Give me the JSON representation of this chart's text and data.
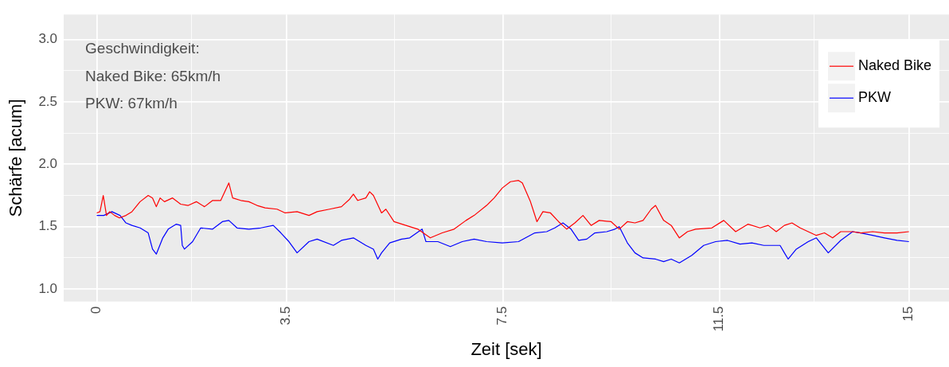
{
  "chart_data": {
    "type": "line",
    "xlabel": "Zeit [sek]",
    "ylabel": "Schärfe [acum]",
    "annotations": [
      "Geschwindigkeit:",
      "Naked Bike: 65km/h",
      "PKW: 67km/h"
    ],
    "xlim": [
      -0.61,
      15.74
    ],
    "ylim": [
      0.9,
      3.2
    ],
    "xticks": [
      0,
      {
        "value": 1.75,
        "label": null
      },
      3.5,
      {
        "value": 5.5,
        "label": null
      },
      7.5,
      {
        "value": 9.5,
        "label": null
      },
      11.5,
      {
        "value": 13.25,
        "label": null
      },
      15
    ],
    "yticks": [
      {
        "value": 1.0,
        "label": "1.0"
      },
      {
        "value": 1.25,
        "label": null
      },
      1.5,
      {
        "value": 1.75,
        "label": null
      },
      {
        "value": 2.0,
        "label": "2.0"
      },
      {
        "value": 2.25,
        "label": null
      },
      2.5,
      {
        "value": 2.75,
        "label": null
      },
      {
        "value": 3.0,
        "label": "3.0"
      }
    ],
    "grid": true,
    "legend": "top right",
    "line_style": "solid",
    "marker": "none",
    "series": [
      {
        "name": "Naked Bike",
        "color": "#ff0000",
        "x": [
          0,
          0.06,
          0.12,
          0.18,
          0.24,
          0.33,
          0.42,
          0.54,
          0.65,
          0.8,
          0.95,
          1.03,
          1.1,
          1.17,
          1.25,
          1.4,
          1.55,
          1.69,
          1.84,
          1.99,
          2.14,
          2.29,
          2.44,
          2.51,
          2.66,
          2.81,
          2.96,
          3.11,
          3.33,
          3.48,
          3.7,
          3.92,
          4.07,
          4.3,
          4.52,
          4.67,
          4.74,
          4.82,
          4.97,
          5.04,
          5.11,
          5.26,
          5.34,
          5.49,
          5.71,
          5.93,
          6.16,
          6.38,
          6.6,
          6.82,
          6.97,
          7.2,
          7.34,
          7.49,
          7.64,
          7.79,
          7.86,
          8.01,
          8.13,
          8.24,
          8.38,
          8.53,
          8.68,
          8.83,
          8.98,
          9.13,
          9.28,
          9.5,
          9.65,
          9.8,
          9.94,
          10.09,
          10.24,
          10.32,
          10.47,
          10.61,
          10.76,
          10.91,
          11.06,
          11.36,
          11.58,
          11.8,
          12.03,
          12.25,
          12.4,
          12.55,
          12.7,
          12.84,
          12.99,
          13.14,
          13.29,
          13.44,
          13.59,
          13.74,
          13.96,
          14.11,
          14.33,
          14.55,
          14.78,
          15
        ],
        "values": [
          1.61,
          1.62,
          1.75,
          1.59,
          1.62,
          1.59,
          1.57,
          1.59,
          1.62,
          1.7,
          1.75,
          1.73,
          1.66,
          1.73,
          1.7,
          1.73,
          1.68,
          1.67,
          1.7,
          1.66,
          1.71,
          1.71,
          1.85,
          1.73,
          1.71,
          1.7,
          1.67,
          1.65,
          1.64,
          1.61,
          1.62,
          1.59,
          1.62,
          1.64,
          1.66,
          1.72,
          1.76,
          1.71,
          1.73,
          1.78,
          1.75,
          1.61,
          1.64,
          1.54,
          1.51,
          1.48,
          1.41,
          1.45,
          1.48,
          1.55,
          1.59,
          1.67,
          1.73,
          1.81,
          1.86,
          1.87,
          1.85,
          1.7,
          1.54,
          1.62,
          1.61,
          1.54,
          1.48,
          1.53,
          1.59,
          1.51,
          1.55,
          1.54,
          1.48,
          1.54,
          1.53,
          1.55,
          1.64,
          1.67,
          1.55,
          1.51,
          1.41,
          1.46,
          1.48,
          1.49,
          1.55,
          1.46,
          1.52,
          1.49,
          1.51,
          1.46,
          1.51,
          1.53,
          1.49,
          1.46,
          1.43,
          1.45,
          1.41,
          1.46,
          1.46,
          1.45,
          1.46,
          1.45,
          1.45,
          1.46
        ]
      },
      {
        "name": "PKW",
        "color": "#0000ff",
        "x": [
          0,
          0.13,
          0.28,
          0.43,
          0.54,
          0.65,
          0.8,
          0.95,
          1.03,
          1.1,
          1.22,
          1.32,
          1.47,
          1.55,
          1.58,
          1.62,
          1.77,
          1.92,
          2.14,
          2.32,
          2.44,
          2.59,
          2.81,
          3.03,
          3.26,
          3.4,
          3.55,
          3.7,
          3.92,
          4.07,
          4.37,
          4.52,
          4.74,
          4.97,
          5.11,
          5.19,
          5.26,
          5.41,
          5.63,
          5.78,
          6.01,
          6.08,
          6.3,
          6.53,
          6.75,
          6.97,
          7.2,
          7.49,
          7.79,
          8.09,
          8.31,
          8.46,
          8.61,
          8.76,
          8.9,
          9.05,
          9.2,
          9.42,
          9.57,
          9.65,
          9.8,
          9.94,
          10.09,
          10.32,
          10.47,
          10.61,
          10.76,
          10.99,
          11.21,
          11.43,
          11.65,
          11.88,
          12.1,
          12.32,
          12.62,
          12.7,
          12.77,
          12.92,
          13.14,
          13.29,
          13.51,
          13.74,
          13.96,
          14.11,
          14.33,
          14.55,
          14.78,
          15
        ],
        "values": [
          1.59,
          1.59,
          1.62,
          1.59,
          1.53,
          1.51,
          1.49,
          1.45,
          1.32,
          1.28,
          1.41,
          1.48,
          1.52,
          1.51,
          1.35,
          1.32,
          1.38,
          1.49,
          1.48,
          1.54,
          1.55,
          1.49,
          1.48,
          1.49,
          1.51,
          1.45,
          1.38,
          1.29,
          1.38,
          1.4,
          1.35,
          1.39,
          1.41,
          1.35,
          1.32,
          1.24,
          1.29,
          1.37,
          1.4,
          1.41,
          1.48,
          1.38,
          1.38,
          1.34,
          1.38,
          1.4,
          1.38,
          1.37,
          1.38,
          1.45,
          1.46,
          1.49,
          1.53,
          1.48,
          1.39,
          1.4,
          1.45,
          1.46,
          1.48,
          1.5,
          1.37,
          1.29,
          1.25,
          1.24,
          1.22,
          1.24,
          1.21,
          1.27,
          1.35,
          1.38,
          1.39,
          1.36,
          1.37,
          1.35,
          1.35,
          1.29,
          1.24,
          1.32,
          1.38,
          1.41,
          1.29,
          1.39,
          1.46,
          1.45,
          1.43,
          1.41,
          1.39,
          1.38
        ]
      }
    ]
  }
}
